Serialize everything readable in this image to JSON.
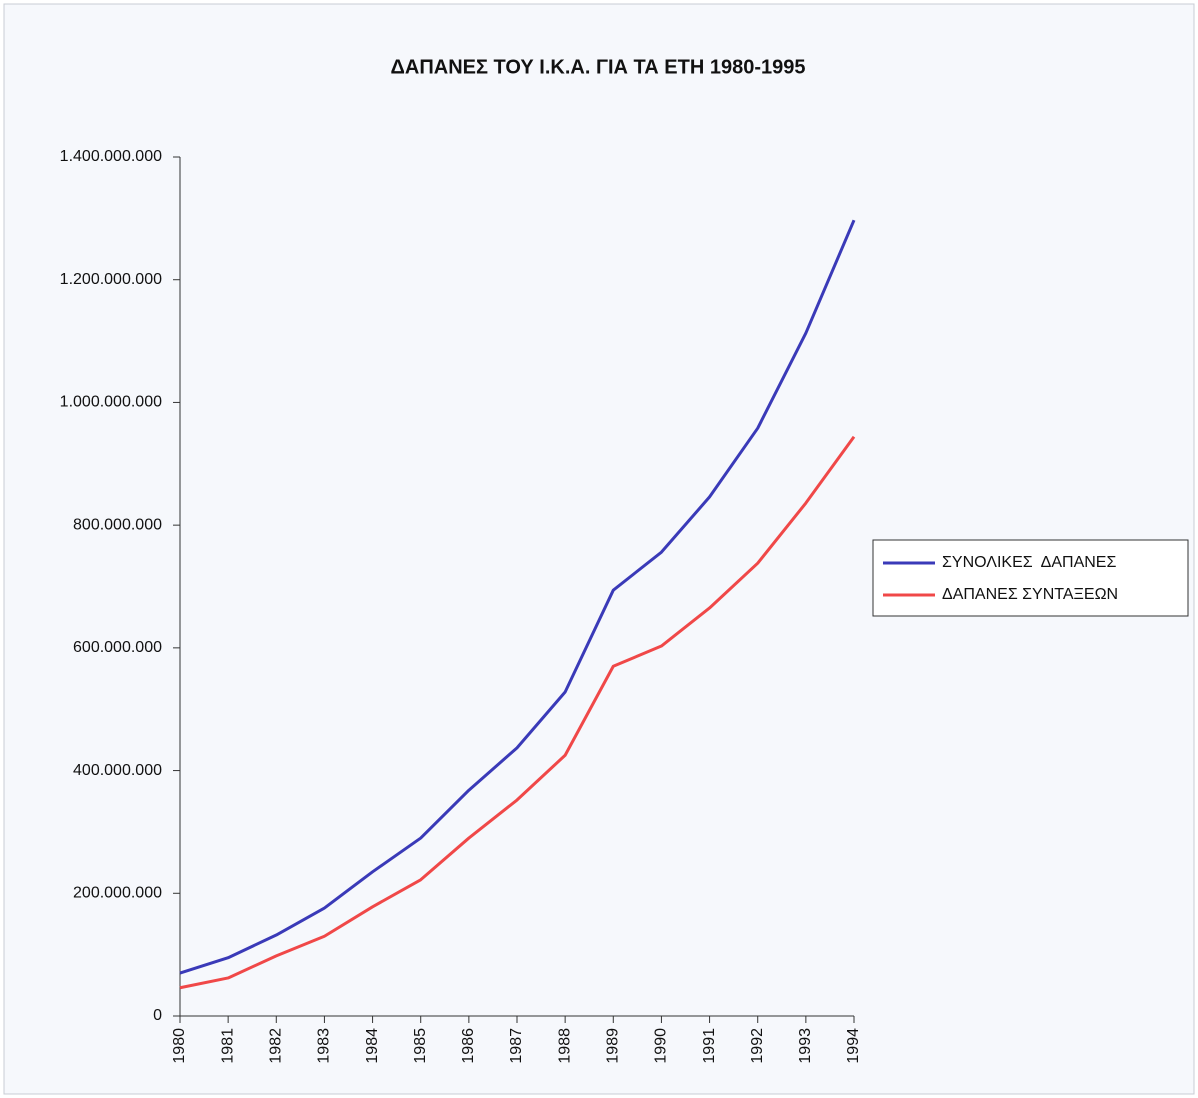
{
  "chart_data": {
    "type": "line",
    "title": "ΔΑΠΑΝΕΣ ΤΟΥ Ι.Κ.Α. ΓΙΑ ΤΑ ΕΤΗ 1980-1995",
    "categories": [
      "1980",
      "1981",
      "1982",
      "1983",
      "1984",
      "1985",
      "1986",
      "1987",
      "1988",
      "1989",
      "1990",
      "1991",
      "1992",
      "1993",
      "1994"
    ],
    "series": [
      {
        "name": "ΣΥΝΟΛΙΚΕΣ  ΔΑΠΑΝΕΣ",
        "color": "#3a3ab8",
        "values": [
          70000000,
          95000000,
          132000000,
          176000000,
          235000000,
          290000000,
          368000000,
          437000000,
          528000000,
          694000000,
          756000000,
          846000000,
          958000000,
          1113000000,
          1297000000
        ]
      },
      {
        "name": "ΔΑΠΑΝΕΣ ΣΥΝΤΑΞΕΩΝ",
        "color": "#f04848",
        "values": [
          46000000,
          62000000,
          98000000,
          130000000,
          178000000,
          222000000,
          290000000,
          352000000,
          425000000,
          570000000,
          603000000,
          665000000,
          738000000,
          836000000,
          944000000
        ]
      }
    ],
    "ylim": [
      0,
      1400000000
    ],
    "yticks": [
      0,
      {
        "value": 200000000,
        "label": "200.000.000"
      },
      {
        "value": 400000000,
        "label": "400.000.000"
      },
      {
        "value": 600000000,
        "label": "600.000.000"
      },
      {
        "value": 800000000,
        "label": "800.000.000"
      },
      {
        "value": 1000000000,
        "label": "1.000.000.000"
      },
      {
        "value": 1200000000,
        "label": "1.200.000.000"
      },
      {
        "value": 1400000000,
        "label": "1.400.000.000"
      }
    ],
    "grid": false,
    "legend": "right"
  }
}
